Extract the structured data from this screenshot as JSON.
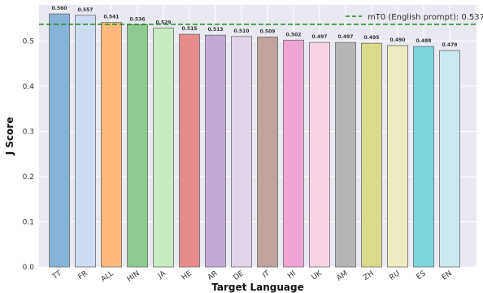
{
  "chart_data": {
    "type": "bar",
    "title": "",
    "xlabel": "Target Language",
    "ylabel": "J Score",
    "categories": [
      "TT",
      "FR",
      "ALL",
      "HIN",
      "JA",
      "HE",
      "AR",
      "DE",
      "IT",
      "HI",
      "UK",
      "AM",
      "ZH",
      "RU",
      "ES",
      "EN"
    ],
    "values": [
      0.56,
      0.557,
      0.541,
      0.536,
      0.529,
      0.515,
      0.513,
      0.51,
      0.509,
      0.502,
      0.497,
      0.497,
      0.495,
      0.49,
      0.488,
      0.479
    ],
    "value_labels": [
      "0.560",
      "0.557",
      "0.541",
      "0.536",
      "0.529",
      "0.515",
      "0.513",
      "0.510",
      "0.509",
      "0.502",
      "0.497",
      "0.497",
      "0.495",
      "0.490",
      "0.488",
      "0.479"
    ],
    "colors": [
      "#86b4d8",
      "#cddcf1",
      "#feb87c",
      "#8dca8d",
      "#c7eac0",
      "#e68b8c",
      "#c3a9d6",
      "#e0d5e9",
      "#bfa39d",
      "#eea5d3",
      "#f6d4e5",
      "#b6b6b6",
      "#dada8a",
      "#ececc0",
      "#7bd4de",
      "#cce9f0"
    ],
    "ylim": [
      0,
      0.58
    ],
    "yticks": [
      "0.0",
      "0.1",
      "0.2",
      "0.3",
      "0.4",
      "0.5"
    ],
    "ytick_values": [
      0.0,
      0.1,
      0.2,
      0.3,
      0.4,
      0.5
    ],
    "grid": true,
    "reference_line": {
      "value": 0.537,
      "label": "mT0 (English prompt): 0.537",
      "color": "#1f8c1f",
      "style": "dashed"
    },
    "legend": {
      "placement": "top-right"
    }
  }
}
